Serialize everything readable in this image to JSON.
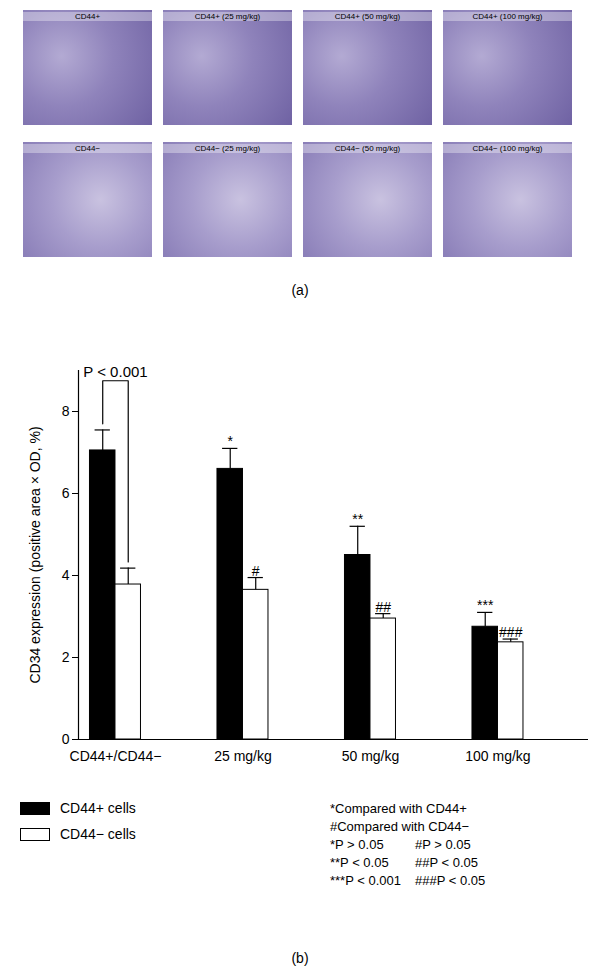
{
  "panel_a": {
    "caption": "(a)",
    "images": [
      [
        "CD44+",
        "CD44+ (25 mg/kg)",
        "CD44+ (50 mg/kg)",
        "CD44+ (100 mg/kg)"
      ],
      [
        "CD44−",
        "CD44− (25 mg/kg)",
        "CD44− (50 mg/kg)",
        "CD44− (100 mg/kg)"
      ]
    ]
  },
  "chart_data": {
    "type": "bar",
    "caption": "(b)",
    "y_label": "CD34 expression (positive area × OD, %)",
    "categories": [
      "CD44+/CD44−",
      "25 mg/kg",
      "50 mg/kg",
      "100 mg/kg"
    ],
    "series": [
      {
        "name": "CD44+ cells",
        "color": "#000000",
        "values": [
          7.05,
          6.6,
          4.5,
          2.75
        ],
        "errors": [
          0.5,
          0.5,
          0.7,
          0.35
        ],
        "significance": [
          null,
          "*",
          "**",
          "***"
        ]
      },
      {
        "name": "CD44− cells",
        "color": "#ffffff",
        "values": [
          3.78,
          3.65,
          2.95,
          2.37
        ],
        "errors": [
          0.4,
          0.3,
          0.12,
          0.08
        ],
        "significance": [
          null,
          "#",
          "##",
          "###"
        ]
      }
    ],
    "annotations": [
      {
        "text": "P < 0.001",
        "category": "CD44+/CD44−",
        "between": [
          "CD44+ cells",
          "CD44− cells"
        ]
      }
    ],
    "notes": [
      "*Compared with CD44+",
      "#Compared with CD44−"
    ],
    "significance_key": [
      [
        "*P > 0.05",
        "#P > 0.05"
      ],
      [
        "**P < 0.05",
        "##P < 0.05"
      ],
      [
        "***P < 0.001",
        "###P < 0.05"
      ]
    ],
    "ylim": [
      0,
      9
    ],
    "yticks": [
      0,
      2,
      4,
      6,
      8
    ],
    "grid": false,
    "legend": "bottom-left"
  }
}
